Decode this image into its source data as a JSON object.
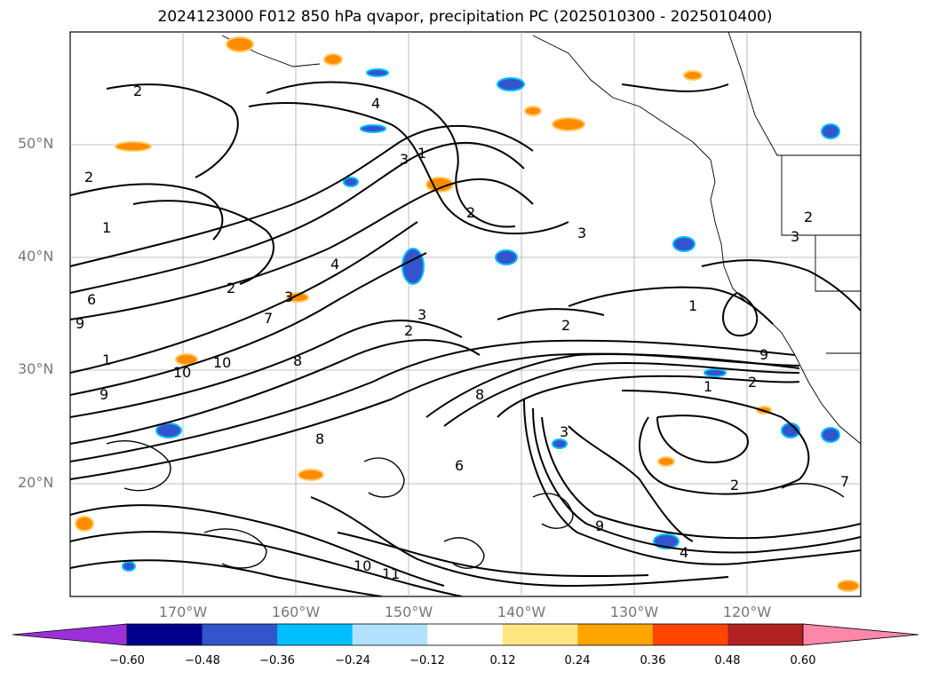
{
  "title": "2024123000 F012 850 hPa qvapor, precipitation PC (2025010300 - 2025010400)",
  "lat_labels": [
    "50°N",
    "40°N",
    "30°N",
    "20°N"
  ],
  "lon_labels": [
    "170°W",
    "160°W",
    "150°W",
    "140°W",
    "130°W",
    "120°W"
  ],
  "colorbar": {
    "ticks": [
      "−0.60",
      "−0.48",
      "−0.36",
      "−0.24",
      "−0.12",
      "0.12",
      "0.24",
      "0.36",
      "0.48",
      "0.60"
    ],
    "colors": [
      "#9b30d9",
      "#00008b",
      "#3355cc",
      "#00bfff",
      "#b0e2ff",
      "#ffffff",
      "#ffe680",
      "#ffa500",
      "#ff4500",
      "#b22222",
      "#ff88aa",
      "#ff88aa"
    ]
  },
  "contour_labels": [
    "2",
    "2",
    "4",
    "3",
    "1",
    "2",
    "3",
    "4",
    "2",
    "1",
    "6",
    "9",
    "3",
    "1",
    "10",
    "10",
    "8",
    "7",
    "2",
    "3",
    "2",
    "8",
    "1",
    "2",
    "9",
    "3",
    "2",
    "1",
    "9",
    "10",
    "11",
    "9",
    "8",
    "6",
    "4",
    "3",
    "2",
    "7"
  ]
}
